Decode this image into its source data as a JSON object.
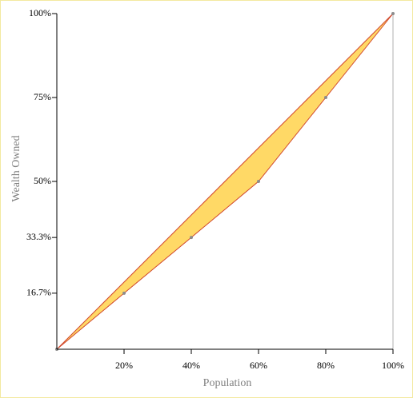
{
  "chart_data": {
    "type": "lorenz",
    "x_label": "Population",
    "y_label": "Wealth Owned",
    "x": [
      0,
      20,
      40,
      60,
      80,
      100
    ],
    "series": [
      {
        "color": "#d0452a",
        "values": [
          0,
          16.7,
          33.3,
          50,
          75,
          100
        ]
      },
      {
        "color": "#d0452a",
        "values": [
          0,
          20,
          40,
          60,
          80,
          100
        ]
      }
    ],
    "fill": "#ffd966",
    "marker_color": "#8c8c8c",
    "xlim": [
      0,
      100
    ],
    "ylim": [
      0,
      100
    ],
    "xticks": [
      {
        "value": 20,
        "label": "20%"
      },
      {
        "value": 40,
        "label": "40%"
      },
      {
        "value": 60,
        "label": "60%"
      },
      {
        "value": 80,
        "label": "80%"
      },
      {
        "value": 100,
        "label": "100%"
      }
    ],
    "yticks": [
      {
        "value": 16.7,
        "label": "16.7%"
      },
      {
        "value": 33.3,
        "label": "33.3%"
      },
      {
        "value": 50,
        "label": "50%"
      },
      {
        "value": 75,
        "label": "75%"
      },
      {
        "value": 100,
        "label": "100%"
      }
    ]
  }
}
